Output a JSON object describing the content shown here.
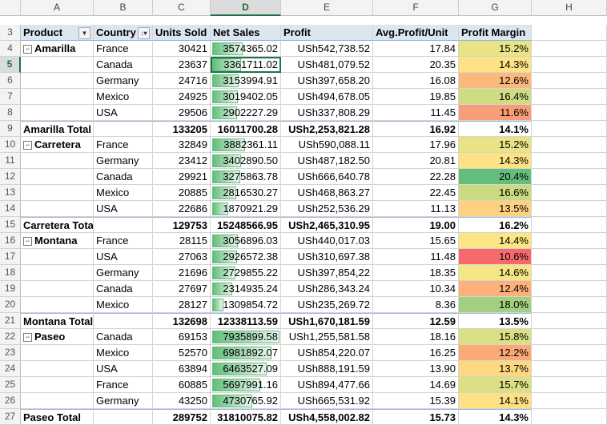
{
  "columns": [
    "A",
    "B",
    "C",
    "D",
    "E",
    "F",
    "G",
    "H"
  ],
  "selected_column": "D",
  "selected_row": "5",
  "header": {
    "row": "3",
    "product": "Product",
    "country": "Country",
    "units": "Units Sold",
    "net_sales": "Net Sales",
    "profit": "Profit",
    "avg": "Avg.Profit/Unit",
    "margin": "Profit Margin"
  },
  "max_net_sales": 7935899.58,
  "rows": [
    {
      "n": "4",
      "product": "Amarilla",
      "group": true,
      "country": "France",
      "units": "30421",
      "sales": "3574365.02",
      "sales_v": 3574365.02,
      "profit": "USh542,738.52",
      "avg": "17.84",
      "margin": "15.2%",
      "mc": "#e8e486"
    },
    {
      "n": "5",
      "product": "",
      "country": "Canada",
      "units": "23637",
      "sales": "3361711.02",
      "sales_v": 3361711.02,
      "profit": "USh481,079.52",
      "avg": "20.35",
      "margin": "14.3%",
      "mc": "#fde383",
      "active": true
    },
    {
      "n": "6",
      "product": "",
      "country": "Germany",
      "units": "24716",
      "sales": "3153994.91",
      "sales_v": 3153994.91,
      "profit": "USh397,658.20",
      "avg": "16.08",
      "margin": "12.6%",
      "mc": "#fbb87a"
    },
    {
      "n": "7",
      "product": "",
      "country": "Mexico",
      "units": "24925",
      "sales": "3019402.05",
      "sales_v": 3019402.05,
      "profit": "USh494,678.05",
      "avg": "19.85",
      "margin": "16.4%",
      "mc": "#cfdc81"
    },
    {
      "n": "8",
      "product": "",
      "country": "USA",
      "units": "29506",
      "sales": "2902227.29",
      "sales_v": 2902227.29,
      "profit": "USh337,808.29",
      "avg": "11.45",
      "margin": "11.6%",
      "mc": "#f99d76"
    },
    {
      "n": "9",
      "total": true,
      "product": "Amarilla Total",
      "units": "133205",
      "sales": "16011700.28",
      "profit": "USh2,253,821.28",
      "avg": "16.92",
      "margin": "14.1%"
    },
    {
      "n": "10",
      "product": "Carretera",
      "group": true,
      "country": "France",
      "units": "32849",
      "sales": "3882361.11",
      "sales_v": 3882361.11,
      "profit": "USh590,088.11",
      "avg": "17.96",
      "margin": "15.2%",
      "mc": "#e8e486"
    },
    {
      "n": "11",
      "product": "",
      "country": "Germany",
      "units": "23412",
      "sales": "3402890.50",
      "sales_v": 3402890.5,
      "profit": "USh487,182.50",
      "avg": "20.81",
      "margin": "14.3%",
      "mc": "#fde383"
    },
    {
      "n": "12",
      "product": "",
      "country": "Canada",
      "units": "29921",
      "sales": "3275863.78",
      "sales_v": 3275863.78,
      "profit": "USh666,640.78",
      "avg": "22.28",
      "margin": "20.4%",
      "mc": "#63be7b"
    },
    {
      "n": "13",
      "product": "",
      "country": "Mexico",
      "units": "20885",
      "sales": "2816530.27",
      "sales_v": 2816530.27,
      "profit": "USh468,863.27",
      "avg": "22.45",
      "margin": "16.6%",
      "mc": "#c9da80"
    },
    {
      "n": "14",
      "product": "",
      "country": "USA",
      "units": "22686",
      "sales": "1870921.29",
      "sales_v": 1870921.29,
      "profit": "USh252,536.29",
      "avg": "11.13",
      "margin": "13.5%",
      "mc": "#fdd17f"
    },
    {
      "n": "15",
      "total": true,
      "product": "Carretera Total",
      "units": "129753",
      "sales": "15248566.95",
      "profit": "USh2,465,310.95",
      "avg": "19.00",
      "margin": "16.2%"
    },
    {
      "n": "16",
      "product": "Montana",
      "group": true,
      "country": "France",
      "units": "28115",
      "sales": "3056896.03",
      "sales_v": 3056896.03,
      "profit": "USh440,017.03",
      "avg": "15.65",
      "margin": "14.4%",
      "mc": "#fbe683"
    },
    {
      "n": "17",
      "product": "",
      "country": "USA",
      "units": "27063",
      "sales": "2926572.38",
      "sales_v": 2926572.38,
      "profit": "USh310,697.38",
      "avg": "11.48",
      "margin": "10.6%",
      "mc": "#f8696b"
    },
    {
      "n": "18",
      "product": "",
      "country": "Germany",
      "units": "21696",
      "sales": "2729855.22",
      "sales_v": 2729855.22,
      "profit": "USh397,854,22",
      "avg": "18.35",
      "margin": "14.6%",
      "mc": "#f5e584"
    },
    {
      "n": "19",
      "product": "",
      "country": "Canada",
      "units": "27697",
      "sales": "2314935.24",
      "sales_v": 2314935.24,
      "profit": "USh286,343.24",
      "avg": "10.34",
      "margin": "12.4%",
      "mc": "#fbb179"
    },
    {
      "n": "20",
      "product": "",
      "country": "Mexico",
      "units": "28127",
      "sales": "1309854.72",
      "sales_v": 1309854.72,
      "profit": "USh235,269.72",
      "avg": "8.36",
      "margin": "18.0%",
      "mc": "#a3d07e"
    },
    {
      "n": "21",
      "total": true,
      "product": "Montana Total",
      "units": "132698",
      "sales": "12338113.59",
      "profit": "USh1,670,181.59",
      "avg": "12.59",
      "margin": "13.5%"
    },
    {
      "n": "22",
      "product": "Paseo",
      "group": true,
      "country": "Canada",
      "units": "69153",
      "sales": "7935899.58",
      "sales_v": 7935899.58,
      "profit": "USh1,255,581.58",
      "avg": "18.16",
      "margin": "15.8%",
      "mc": "#dadf83"
    },
    {
      "n": "23",
      "product": "",
      "country": "Mexico",
      "units": "52570",
      "sales": "6981892.07",
      "sales_v": 6981892.07,
      "profit": "USh854,220.07",
      "avg": "16.25",
      "margin": "12.2%",
      "mc": "#fba977"
    },
    {
      "n": "24",
      "product": "",
      "country": "USA",
      "units": "63894",
      "sales": "6463527.09",
      "sales_v": 6463527.09,
      "profit": "USh888,191.59",
      "avg": "13.90",
      "margin": "13.7%",
      "mc": "#fdd880"
    },
    {
      "n": "25",
      "product": "",
      "country": "France",
      "units": "60885",
      "sales": "5697991.16",
      "sales_v": 5697991.16,
      "profit": "USh894,477.66",
      "avg": "14.69",
      "margin": "15.7%",
      "mc": "#dcdf83"
    },
    {
      "n": "26",
      "product": "",
      "country": "Germany",
      "units": "43250",
      "sales": "4730765.92",
      "sales_v": 4730765.92,
      "profit": "USh665,531.92",
      "avg": "15.39",
      "margin": "14.1%",
      "mc": "#fde182"
    },
    {
      "n": "27",
      "total": true,
      "product": "Paseo Total",
      "units": "289752",
      "sales": "31810075.82",
      "profit": "USh4,558,002.82",
      "avg": "15.73",
      "margin": "14.3%"
    }
  ]
}
